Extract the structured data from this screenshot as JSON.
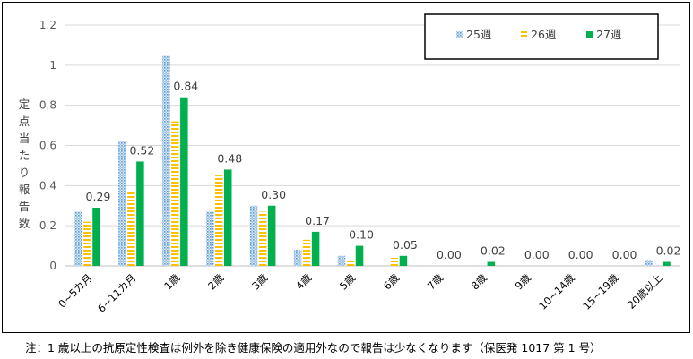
{
  "chart_data": {
    "type": "bar",
    "ylabel": "定点当たり報告数",
    "ylim": [
      0,
      1.2
    ],
    "yticks": [
      "0",
      "0.2",
      "0.4",
      "0.6",
      "0.8",
      "1",
      "1.2"
    ],
    "ytick_values": [
      0,
      0.2,
      0.4,
      0.6,
      0.8,
      1.0,
      1.2
    ],
    "grid": true,
    "legend_position": "top-right",
    "categories": [
      "0~5カ月",
      "6~11カ月",
      "1歳",
      "2歳",
      "3歳",
      "4歳",
      "5歳",
      "6歳",
      "7歳",
      "8歳",
      "9歳",
      "10~14歳",
      "15~19歳",
      "20歳以上"
    ],
    "series": [
      {
        "name": "25週",
        "color": "#9DC3E6",
        "pattern": "dotted",
        "values": [
          0.27,
          0.62,
          1.05,
          0.27,
          0.3,
          0.08,
          0.05,
          0.0,
          0.0,
          0.0,
          0.0,
          0.0,
          0.0,
          0.03
        ]
      },
      {
        "name": "26週",
        "color": "#FFC000",
        "pattern": "dashed",
        "values": [
          0.22,
          0.37,
          0.72,
          0.45,
          0.27,
          0.13,
          0.03,
          0.04,
          0.0,
          0.0,
          0.0,
          0.0,
          0.0,
          0.0
        ]
      },
      {
        "name": "27週",
        "color": "#00B050",
        "pattern": "solid",
        "values": [
          0.29,
          0.52,
          0.84,
          0.48,
          0.3,
          0.17,
          0.1,
          0.05,
          0.0,
          0.02,
          0.0,
          0.0,
          0.0,
          0.02
        ]
      }
    ],
    "data_labels": [
      "0.29",
      "0.52",
      "0.84",
      "0.48",
      "0.30",
      "0.17",
      "0.10",
      "0.05",
      "0.00",
      "0.02",
      "0.00",
      "0.00",
      "0.00",
      "0.02"
    ]
  },
  "footnote": "注：1 歳以上の抗原定性検査は例外を除き健康保険の適用外なので報告は少なくなります（保医発 1017 第 1 号）"
}
